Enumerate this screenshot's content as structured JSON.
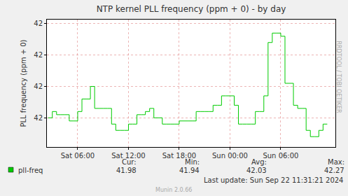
{
  "chart_data": {
    "type": "line",
    "title": "NTP kernel PLL frequency (ppm + 0) - by day",
    "y_label": "PLL frequency (ppm + 0)",
    "side_text": "RRDTOOL / TOBI OETIKER",
    "footer_update": "Last update: Sun Sep 22 11:31:21 2024",
    "footer_version": "Munin 2.0.66",
    "grid": true,
    "line_style": "step",
    "xlim": [
      2.36,
      36.46
    ],
    "xticks": [
      {
        "value": 6,
        "label": "Sat 06:00"
      },
      {
        "value": 12,
        "label": "Sat 12:00"
      },
      {
        "value": 18,
        "label": "Sat 18:00"
      },
      {
        "value": 24,
        "label": "Sun 00:00"
      },
      {
        "value": 30,
        "label": "Sun 06:00"
      }
    ],
    "ylim": [
      41.907,
      42.313
    ],
    "yticks": [
      {
        "value": 42.0,
        "label": "42"
      },
      {
        "value": 42.1,
        "label": "42"
      },
      {
        "value": 42.2,
        "label": "42"
      },
      {
        "value": 42.3,
        "label": "42"
      }
    ],
    "x": [
      2.5,
      3,
      3.5,
      4,
      4.5,
      5,
      5.5,
      6,
      6.5,
      7,
      7.5,
      8,
      8.5,
      9,
      9.5,
      10,
      10.5,
      11,
      11.5,
      12,
      12.5,
      13,
      13.5,
      14,
      14.5,
      15,
      15.5,
      16,
      16.5,
      17,
      17.5,
      18,
      18.5,
      19,
      19.5,
      20,
      20.5,
      21,
      21.5,
      22,
      22.5,
      23,
      23.5,
      24,
      24.5,
      25,
      25.5,
      26,
      26.5,
      27,
      27.5,
      28,
      28.5,
      29,
      29.5,
      30,
      30.5,
      31,
      31.5,
      32,
      32.5,
      33,
      33.5,
      34,
      34.5,
      35,
      35.5
    ],
    "series": [
      {
        "name": "pll-freq",
        "color": "#00cc00",
        "values": [
          42.0,
          42.02,
          42.01,
          42.01,
          42.01,
          41.99,
          41.99,
          42.02,
          42.06,
          42.06,
          42.1,
          42.03,
          42.03,
          42.03,
          42.03,
          41.98,
          41.96,
          41.96,
          41.96,
          41.98,
          41.98,
          42.01,
          42.01,
          42.02,
          42.03,
          42.0,
          42.0,
          41.98,
          41.98,
          41.98,
          41.98,
          41.99,
          41.99,
          41.99,
          41.99,
          42.02,
          42.02,
          42.02,
          42.02,
          42.04,
          42.04,
          42.07,
          42.07,
          42.07,
          42.04,
          41.98,
          41.98,
          41.98,
          41.98,
          42.02,
          42.02,
          42.07,
          42.24,
          42.27,
          42.27,
          42.26,
          42.11,
          42.11,
          42.04,
          42.03,
          42.03,
          41.96,
          41.94,
          41.94,
          41.96,
          41.98,
          41.98
        ]
      }
    ],
    "stats": [
      {
        "label": "Cur:",
        "value": 41.98
      },
      {
        "label": "Min:",
        "value": 41.94
      },
      {
        "label": "Avg:",
        "value": 42.03
      },
      {
        "label": "Max:",
        "value": 42.27
      }
    ]
  }
}
